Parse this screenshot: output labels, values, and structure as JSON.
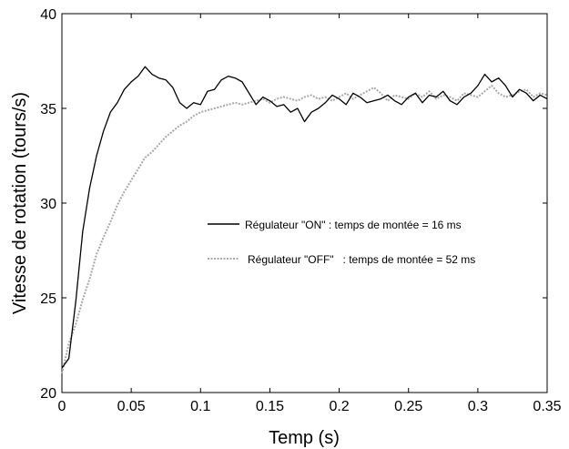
{
  "chart_data": {
    "type": "line",
    "xlabel": "Temp (s)",
    "ylabel": "Vitesse de rotation (tours/s)",
    "xlim": [
      0,
      0.35
    ],
    "ylim": [
      20,
      40
    ],
    "x_ticks": [
      0,
      0.05,
      0.1,
      0.15,
      0.2,
      0.25,
      0.3,
      0.35
    ],
    "x_tick_labels": [
      "0",
      "0.05",
      "0.1",
      "0.15",
      "0.2",
      "0.25",
      "0.3",
      "0.35"
    ],
    "y_ticks": [
      20,
      25,
      30,
      35,
      40
    ],
    "y_tick_labels": [
      "20",
      "25",
      "30",
      "35",
      "40"
    ],
    "grid": false,
    "legend_position": "center-right",
    "series": [
      {
        "name": "Régulateur \"ON\" : temps de montée = 16 ms",
        "color": "#000000",
        "style": "solid",
        "x": [
          0.0,
          0.005,
          0.01,
          0.015,
          0.02,
          0.025,
          0.03,
          0.035,
          0.04,
          0.045,
          0.05,
          0.055,
          0.06,
          0.065,
          0.07,
          0.075,
          0.08,
          0.085,
          0.09,
          0.095,
          0.1,
          0.105,
          0.11,
          0.115,
          0.12,
          0.125,
          0.13,
          0.135,
          0.14,
          0.145,
          0.15,
          0.155,
          0.16,
          0.165,
          0.17,
          0.175,
          0.18,
          0.185,
          0.19,
          0.195,
          0.2,
          0.205,
          0.21,
          0.215,
          0.22,
          0.225,
          0.23,
          0.235,
          0.24,
          0.245,
          0.25,
          0.255,
          0.26,
          0.265,
          0.27,
          0.275,
          0.28,
          0.285,
          0.29,
          0.295,
          0.3,
          0.305,
          0.31,
          0.315,
          0.32,
          0.325,
          0.33,
          0.335,
          0.34,
          0.345,
          0.35
        ],
        "y": [
          21.3,
          21.8,
          24.8,
          28.5,
          30.8,
          32.5,
          33.8,
          34.8,
          35.3,
          36.0,
          36.4,
          36.7,
          37.2,
          36.8,
          36.6,
          36.5,
          36.1,
          35.3,
          35.0,
          35.3,
          35.2,
          35.9,
          36.0,
          36.5,
          36.7,
          36.6,
          36.4,
          35.8,
          35.2,
          35.6,
          35.4,
          35.1,
          35.2,
          34.8,
          35.0,
          34.3,
          34.8,
          35.0,
          35.3,
          35.7,
          35.5,
          35.2,
          35.8,
          35.6,
          35.3,
          35.4,
          35.5,
          35.7,
          35.4,
          35.2,
          35.6,
          35.8,
          35.3,
          35.7,
          35.6,
          35.9,
          35.4,
          35.2,
          35.6,
          35.8,
          36.2,
          36.8,
          36.4,
          36.6,
          36.2,
          35.6,
          36.0,
          35.8,
          35.4,
          35.7,
          35.5
        ]
      },
      {
        "name": "Régulateur \"OFF\"   : temps de montée = 52 ms",
        "color": "#a8a8a8",
        "style": "dotted",
        "x": [
          0.0,
          0.005,
          0.01,
          0.015,
          0.02,
          0.025,
          0.03,
          0.035,
          0.04,
          0.045,
          0.05,
          0.055,
          0.06,
          0.065,
          0.07,
          0.075,
          0.08,
          0.085,
          0.09,
          0.095,
          0.1,
          0.105,
          0.11,
          0.115,
          0.12,
          0.125,
          0.13,
          0.135,
          0.14,
          0.145,
          0.15,
          0.155,
          0.16,
          0.165,
          0.17,
          0.175,
          0.18,
          0.185,
          0.19,
          0.195,
          0.2,
          0.205,
          0.21,
          0.215,
          0.22,
          0.225,
          0.23,
          0.235,
          0.24,
          0.245,
          0.25,
          0.255,
          0.26,
          0.265,
          0.27,
          0.275,
          0.28,
          0.285,
          0.29,
          0.295,
          0.3,
          0.305,
          0.31,
          0.315,
          0.32,
          0.325,
          0.33,
          0.335,
          0.34,
          0.345,
          0.35
        ],
        "y": [
          21.0,
          22.6,
          23.6,
          24.9,
          26.0,
          27.3,
          28.2,
          29.0,
          29.9,
          30.6,
          31.2,
          31.8,
          32.4,
          32.7,
          33.1,
          33.5,
          33.8,
          34.1,
          34.3,
          34.6,
          34.8,
          34.9,
          35.0,
          35.1,
          35.2,
          35.3,
          35.2,
          35.3,
          35.4,
          35.5,
          35.3,
          35.5,
          35.6,
          35.5,
          35.4,
          35.6,
          35.7,
          35.5,
          35.6,
          35.4,
          35.6,
          35.8,
          35.5,
          35.7,
          35.9,
          36.1,
          35.8,
          35.4,
          35.7,
          35.6,
          35.5,
          35.8,
          35.6,
          35.9,
          35.5,
          35.7,
          35.6,
          35.4,
          35.8,
          35.7,
          35.6,
          35.9,
          36.2,
          35.8,
          35.6,
          35.7,
          35.9,
          36.0,
          35.6,
          35.8,
          35.7
        ]
      }
    ]
  }
}
